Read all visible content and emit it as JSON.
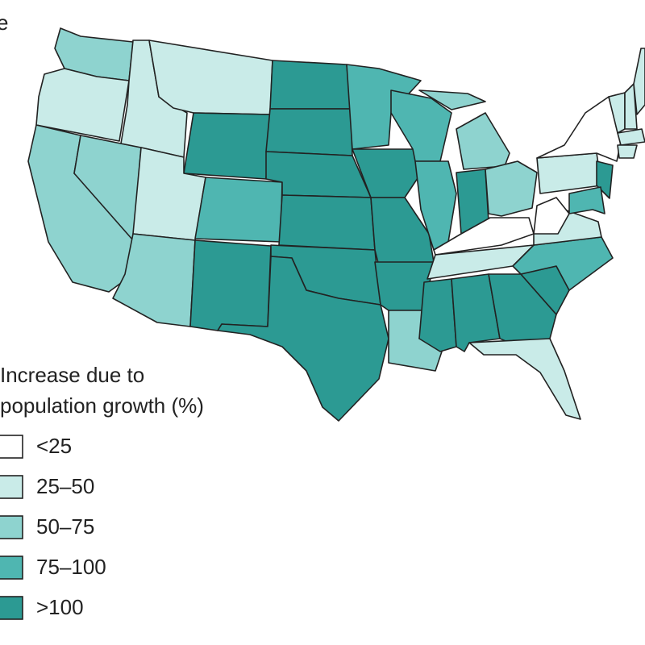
{
  "panel_label": "e",
  "legend": {
    "title": [
      "Increase due to",
      "population growth (%)"
    ],
    "items": [
      {
        "label": "<25",
        "color": "#ffffff"
      },
      {
        "label": "25–50",
        "color": "#c9ebe8"
      },
      {
        "label": "50–75",
        "color": "#8ed3cf"
      },
      {
        "label": "75–100",
        "color": "#4fb6b1"
      },
      {
        "label": ">100",
        "color": "#2c9a93"
      }
    ]
  },
  "regions": [
    2,
    1,
    2,
    2,
    1,
    1,
    4,
    1,
    3,
    2,
    4,
    4,
    4,
    4,
    4,
    4,
    4,
    3,
    4,
    4,
    4,
    2,
    3,
    3,
    2,
    2,
    4,
    2,
    0,
    1,
    4,
    4,
    4,
    1,
    4,
    3,
    1,
    0,
    1,
    0,
    4,
    3,
    1,
    1,
    1,
    1,
    1
  ]
}
